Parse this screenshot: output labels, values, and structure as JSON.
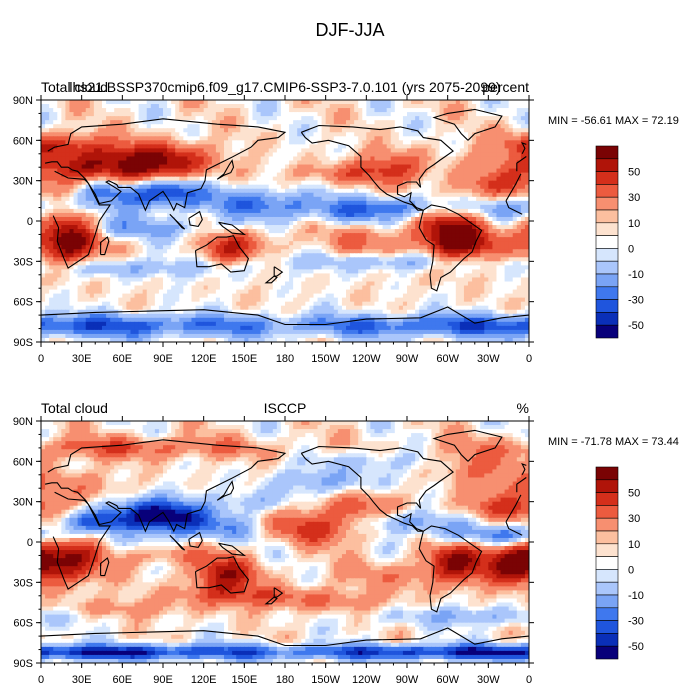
{
  "figure": {
    "title": "DJF-JJA"
  },
  "colors": {
    "levels": [
      "#08007a",
      "#0a2fb8",
      "#1f55dd",
      "#3f78ee",
      "#7aa4f5",
      "#aac6fb",
      "#d6e6fd",
      "#ffffff",
      "#fde2cf",
      "#fcbf9f",
      "#f78f70",
      "#ec5b3f",
      "#d42f1b",
      "#b01409",
      "#7a0304"
    ],
    "coast": "#000000"
  },
  "chart_data": [
    {
      "type": "heatmap",
      "left_label": "Total cloud",
      "center_label": "lhs21.BSSP370cmip6.f09_g17.CMIP6-SSP3-7.0.101 (yrs 2075-2099)",
      "right_label": "percent",
      "min_label": "MIN = -56.61  MAX =  72.19",
      "min": -56.61,
      "max": 72.19,
      "x_ticks": [
        "0",
        "30E",
        "60E",
        "90E",
        "120E",
        "150E",
        "180",
        "150W",
        "120W",
        "90W",
        "60W",
        "30W",
        "0"
      ],
      "y_ticks": [
        "90N",
        "60N",
        "30N",
        "0",
        "30S",
        "60S",
        "90S"
      ],
      "colorbar_labels": [
        "50",
        "30",
        "10",
        "0",
        "-10",
        "-30",
        "-50"
      ],
      "levels": [
        -60,
        -50,
        -40,
        -30,
        -20,
        -10,
        -5,
        0,
        5,
        10,
        20,
        30,
        40,
        50,
        60
      ]
    },
    {
      "type": "heatmap",
      "left_label": "Total cloud",
      "center_label": "ISCCP",
      "right_label": "%",
      "min_label": "MIN = -71.78  MAX =  73.44",
      "min": -71.78,
      "max": 73.44,
      "x_ticks": [
        "0",
        "30E",
        "60E",
        "90E",
        "120E",
        "150E",
        "180",
        "150W",
        "120W",
        "90W",
        "60W",
        "30W",
        "0"
      ],
      "y_ticks": [
        "90N",
        "60N",
        "30N",
        "0",
        "30S",
        "60S",
        "90S"
      ],
      "colorbar_labels": [
        "50",
        "30",
        "10",
        "0",
        "-10",
        "-30",
        "-50"
      ],
      "levels": [
        -60,
        -50,
        -40,
        -30,
        -20,
        -10,
        -5,
        0,
        5,
        10,
        20,
        30,
        40,
        50,
        60
      ]
    }
  ]
}
